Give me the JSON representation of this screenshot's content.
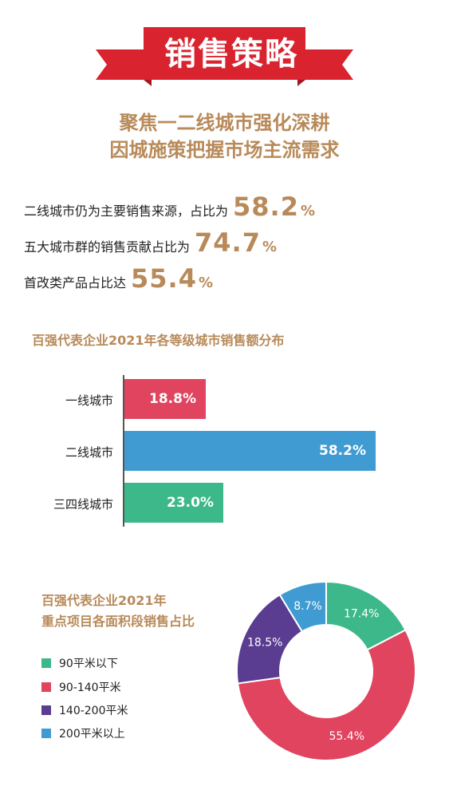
{
  "header": {
    "title": "销售策略",
    "color": "#d9232e",
    "dark_color": "#a31820"
  },
  "headline": {
    "line1": "聚焦一二线城市强化深耕",
    "line2": "因城施策把握市场主流需求"
  },
  "stats": [
    {
      "text": "二线城市仍为主要销售来源，占比为",
      "value": "58.2",
      "unit": "%"
    },
    {
      "text": "五大城市群的销售贡献占比为",
      "value": "74.7",
      "unit": "%"
    },
    {
      "text": "首改类产品占比达",
      "value": "55.4",
      "unit": "%"
    }
  ],
  "chart_data": [
    {
      "type": "bar",
      "orientation": "horizontal",
      "title": "百强代表企业2021年各等级城市销售额分布",
      "categories": [
        "一线城市",
        "二线城市",
        "三四线城市"
      ],
      "values": [
        18.8,
        58.2,
        23.0
      ],
      "value_labels": [
        "18.8%",
        "58.2%",
        "23.0%"
      ],
      "colors": [
        "#e0445f",
        "#3f9bd2",
        "#3db88a"
      ],
      "xlim": [
        0,
        58.2
      ]
    },
    {
      "type": "pie",
      "style": "donut",
      "title_line1": "百强代表企业2021年",
      "title_line2": "重点项目各面积段销售占比",
      "categories": [
        "90平米以下",
        "90-140平米",
        "140-200平米",
        "200平米以上"
      ],
      "values": [
        17.4,
        55.4,
        18.5,
        8.7
      ],
      "value_labels": [
        "17.4%",
        "55.4%",
        "18.5%",
        "8.7%"
      ],
      "colors": [
        "#3db88a",
        "#e0445f",
        "#5a3d91",
        "#3f9bd2"
      ],
      "legend_position": "left"
    }
  ]
}
